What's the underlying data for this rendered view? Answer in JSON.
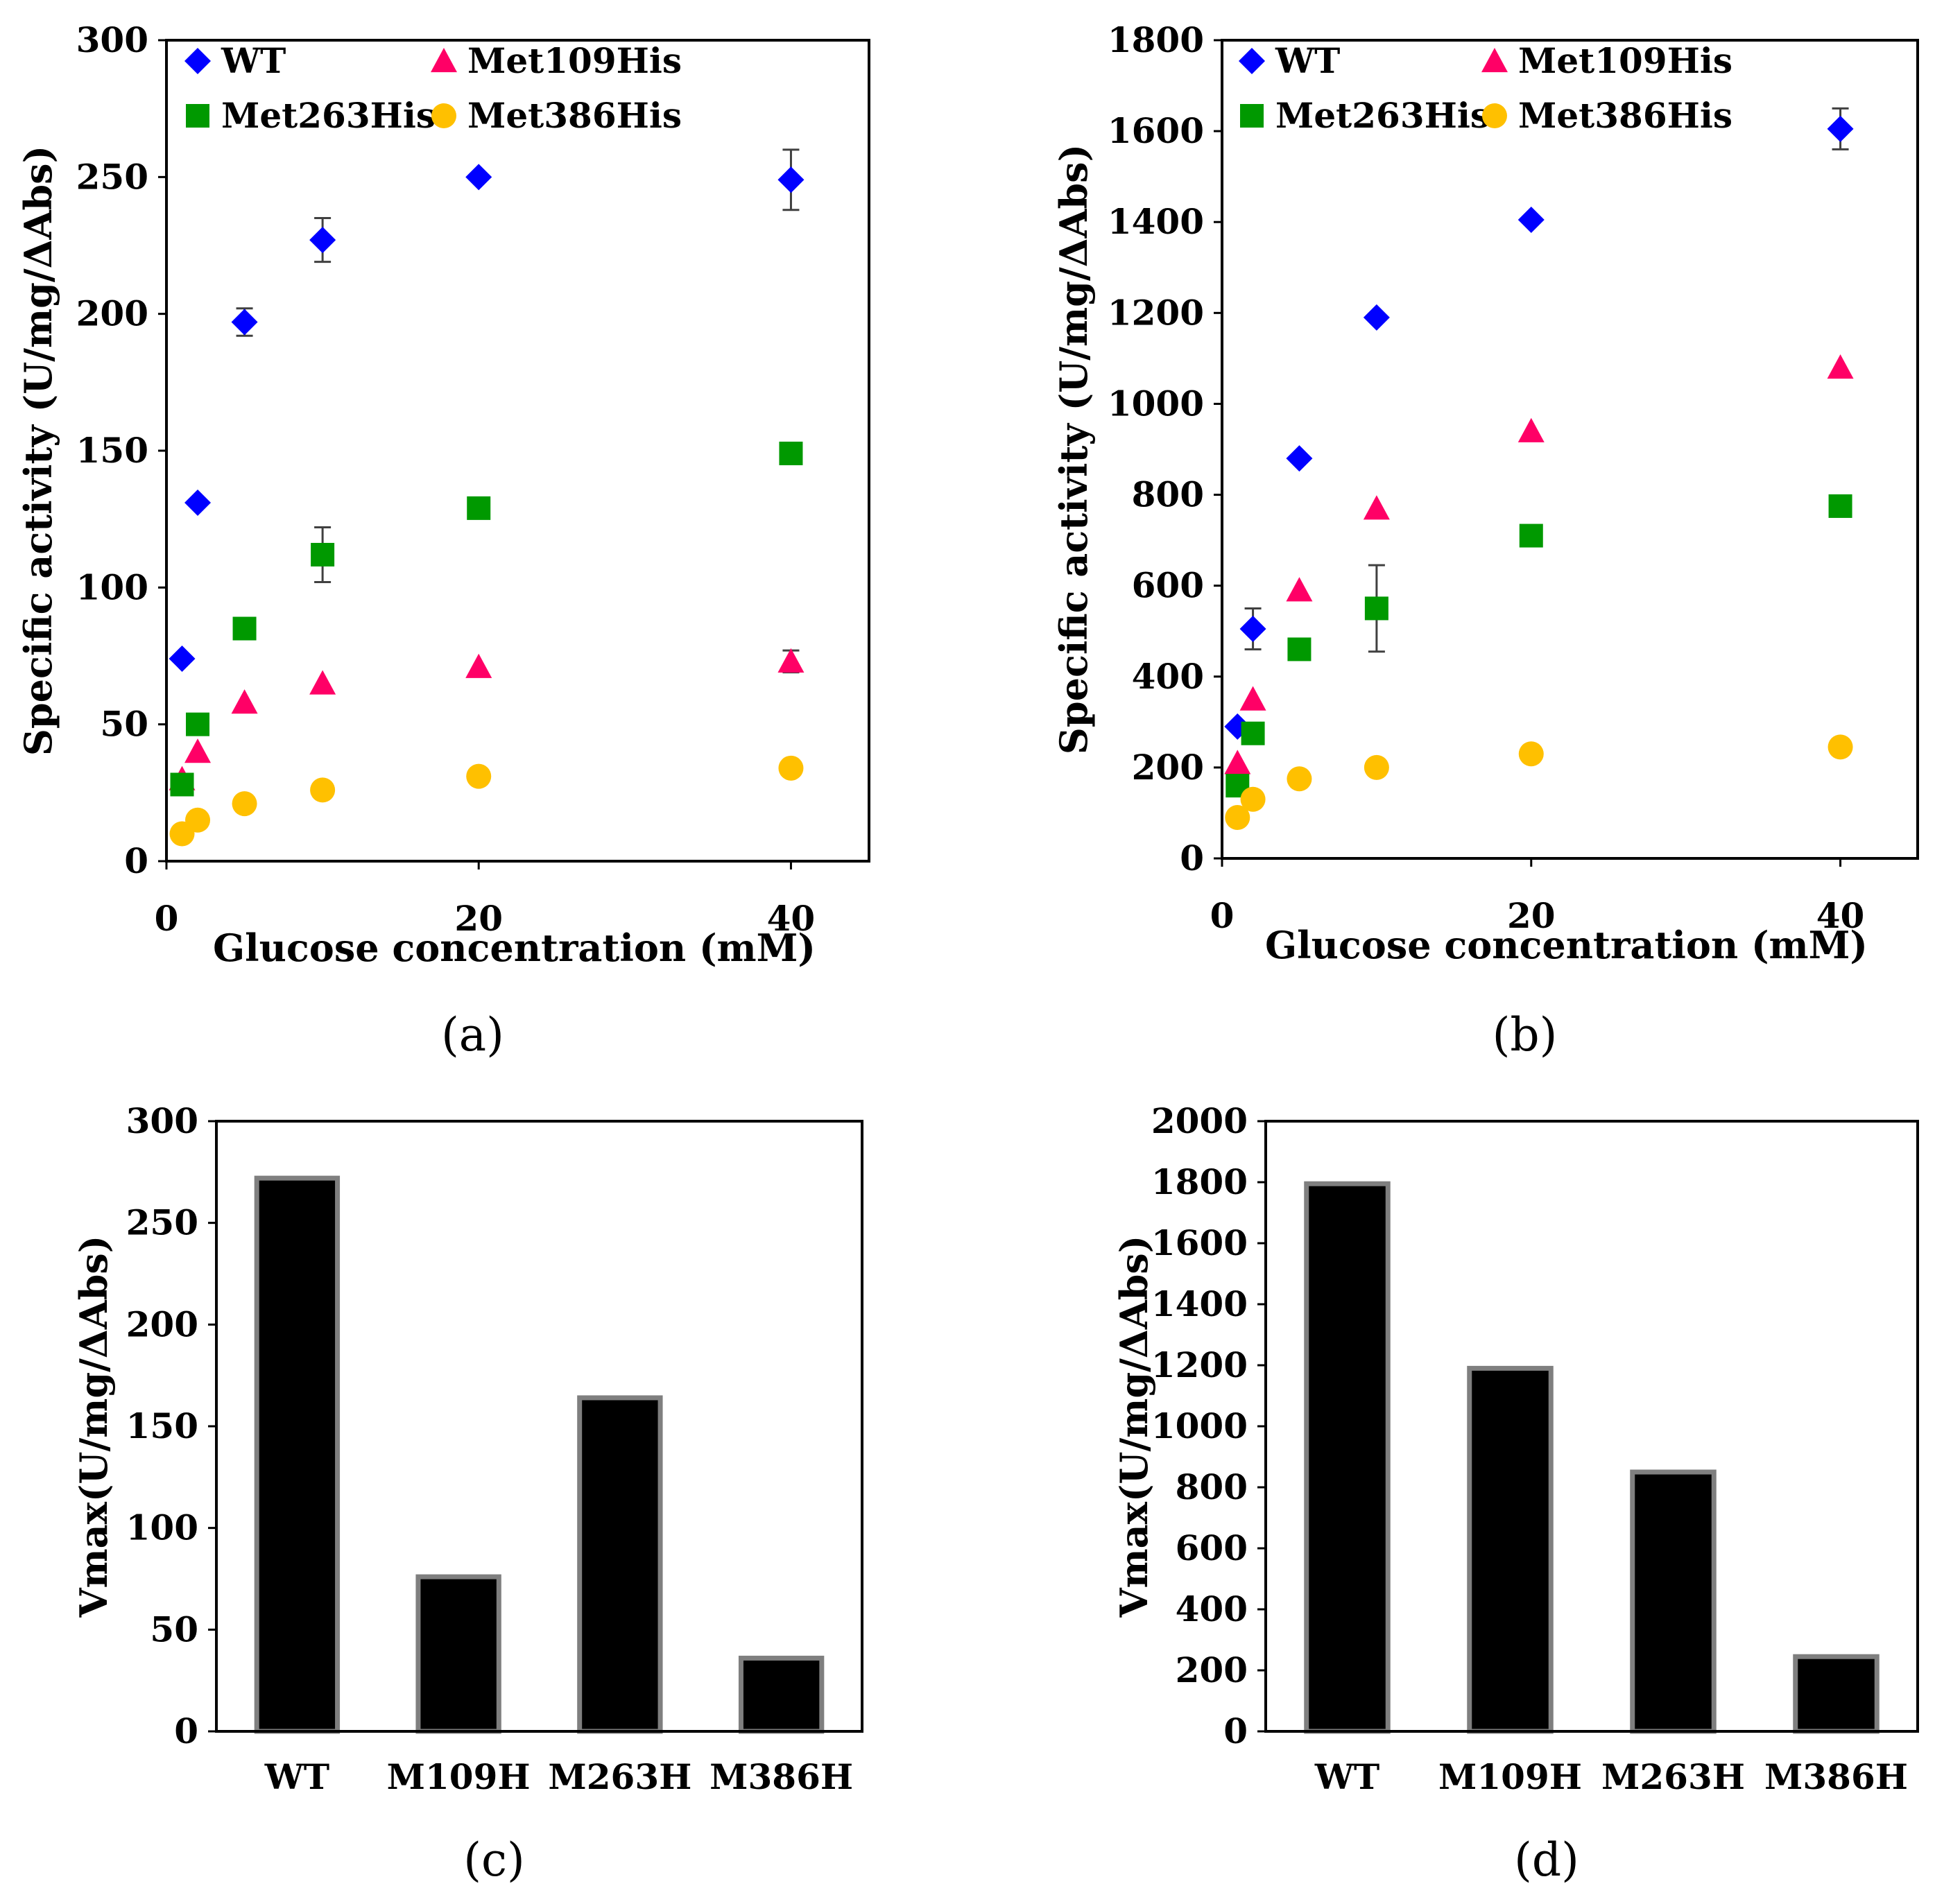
{
  "figure": {
    "colors": {
      "WT": "#0000ff",
      "Met109His": "#ff0066",
      "Met263His": "#009900",
      "Met386His": "#ffc000",
      "bar_fill": "#000000",
      "bar_edge": "#7f7f7f",
      "error_bar": "#404040"
    }
  },
  "chart_data": [
    {
      "type": "scatter",
      "panel": "(a)",
      "xlabel": "Glucose concentration (mM)",
      "ylabel": "Specific activity (U/mg/ΔAbs)",
      "xlim": [
        0,
        45
      ],
      "ylim": [
        0,
        300
      ],
      "xticks": [
        0,
        20,
        40
      ],
      "yticks": [
        0,
        50,
        100,
        150,
        200,
        250,
        300
      ],
      "legend": "top-left, two columns",
      "series": [
        {
          "name": "WT",
          "marker": "diamond",
          "color": "#0000ff",
          "x": [
            1,
            2,
            5,
            10,
            20,
            40
          ],
          "y": [
            74,
            131,
            197,
            227,
            250,
            249
          ],
          "err": [
            0,
            0,
            5,
            8,
            0,
            11
          ]
        },
        {
          "name": "Met109His",
          "marker": "triangle",
          "color": "#ff0066",
          "x": [
            1,
            2,
            5,
            10,
            20,
            40
          ],
          "y": [
            30,
            40,
            58,
            65,
            71,
            73
          ],
          "err": [
            0,
            0,
            0,
            0,
            0,
            4
          ]
        },
        {
          "name": "Met263His",
          "marker": "square",
          "color": "#009900",
          "x": [
            1,
            2,
            5,
            10,
            20,
            40
          ],
          "y": [
            28,
            50,
            85,
            112,
            129,
            149
          ],
          "err": [
            0,
            0,
            0,
            10,
            0,
            0
          ]
        },
        {
          "name": "Met386His",
          "marker": "circle",
          "color": "#ffc000",
          "x": [
            1,
            2,
            5,
            10,
            20,
            40
          ],
          "y": [
            10,
            15,
            21,
            26,
            31,
            34
          ],
          "err": [
            0,
            0,
            0,
            0,
            0,
            0
          ]
        }
      ]
    },
    {
      "type": "scatter",
      "panel": "(b)",
      "xlabel": "Glucose concentration (mM)",
      "ylabel": "Specific activity (U/mg/ΔAbs)",
      "xlim": [
        0,
        45
      ],
      "ylim": [
        0,
        1800
      ],
      "xticks": [
        0,
        20,
        40
      ],
      "yticks": [
        0,
        200,
        400,
        600,
        800,
        1000,
        1200,
        1400,
        1600,
        1800
      ],
      "legend": "top-left, two columns",
      "series": [
        {
          "name": "WT",
          "marker": "diamond",
          "color": "#0000ff",
          "x": [
            1,
            2,
            5,
            10,
            20,
            40
          ],
          "y": [
            290,
            505,
            880,
            1190,
            1405,
            1605
          ],
          "err": [
            0,
            45,
            0,
            0,
            0,
            45
          ]
        },
        {
          "name": "Met109His",
          "marker": "triangle",
          "color": "#ff0066",
          "x": [
            1,
            2,
            5,
            10,
            20,
            40
          ],
          "y": [
            210,
            350,
            590,
            770,
            940,
            1080
          ],
          "err": [
            0,
            0,
            0,
            0,
            0,
            0
          ]
        },
        {
          "name": "Met263His",
          "marker": "square",
          "color": "#009900",
          "x": [
            1,
            2,
            5,
            10,
            20,
            40
          ],
          "y": [
            160,
            275,
            460,
            550,
            710,
            775
          ],
          "err": [
            0,
            0,
            0,
            95,
            0,
            0
          ]
        },
        {
          "name": "Met386His",
          "marker": "circle",
          "color": "#ffc000",
          "x": [
            1,
            2,
            5,
            10,
            20,
            40
          ],
          "y": [
            90,
            130,
            175,
            200,
            230,
            245
          ],
          "err": [
            0,
            0,
            0,
            0,
            0,
            0
          ]
        }
      ]
    },
    {
      "type": "bar",
      "panel": "(c)",
      "xlabel": "",
      "ylabel": "Vmax(U/mg/ΔAbs)",
      "ylim": [
        0,
        300
      ],
      "yticks": [
        0,
        50,
        100,
        150,
        200,
        250,
        300
      ],
      "categories": [
        "WT",
        "M109H",
        "M263H",
        "M386H"
      ],
      "values": [
        272,
        76,
        164,
        36
      ]
    },
    {
      "type": "bar",
      "panel": "(d)",
      "xlabel": "",
      "ylabel": "Vmax(U/mg/ΔAbs)",
      "ylim": [
        0,
        2000
      ],
      "yticks": [
        0,
        200,
        400,
        600,
        800,
        1000,
        1200,
        1400,
        1600,
        1800,
        2000
      ],
      "categories": [
        "WT",
        "M109H",
        "M263H",
        "M386H"
      ],
      "values": [
        1795,
        1190,
        850,
        245
      ]
    }
  ]
}
